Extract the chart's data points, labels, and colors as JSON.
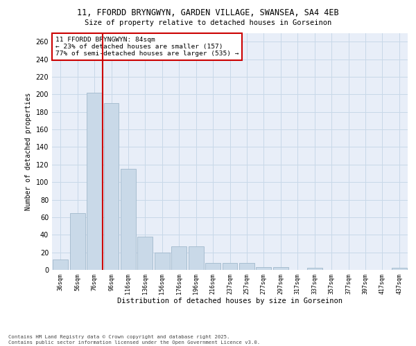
{
  "title_line1": "11, FFORDD BRYNGWYN, GARDEN VILLAGE, SWANSEA, SA4 4EB",
  "title_line2": "Size of property relative to detached houses in Gorseinon",
  "xlabel": "Distribution of detached houses by size in Gorseinon",
  "ylabel": "Number of detached properties",
  "categories": [
    "36sqm",
    "56sqm",
    "76sqm",
    "96sqm",
    "116sqm",
    "136sqm",
    "156sqm",
    "176sqm",
    "196sqm",
    "216sqm",
    "237sqm",
    "257sqm",
    "277sqm",
    "297sqm",
    "317sqm",
    "337sqm",
    "357sqm",
    "377sqm",
    "397sqm",
    "417sqm",
    "437sqm"
  ],
  "values": [
    12,
    65,
    202,
    190,
    115,
    38,
    20,
    27,
    27,
    8,
    8,
    8,
    3,
    3,
    0,
    2,
    0,
    0,
    0,
    0,
    2
  ],
  "bar_color": "#c9d9e8",
  "bar_edge_color": "#a0b8cc",
  "grid_color": "#c8d8e8",
  "background_color": "#e8eef8",
  "vline_x": 2.5,
  "vline_color": "#cc0000",
  "annotation_text": "11 FFORDD BRYNGWYN: 84sqm\n← 23% of detached houses are smaller (157)\n77% of semi-detached houses are larger (535) →",
  "annotation_box_color": "#cc0000",
  "footnote": "Contains HM Land Registry data © Crown copyright and database right 2025.\nContains public sector information licensed under the Open Government Licence v3.0.",
  "ylim": [
    0,
    270
  ],
  "yticks": [
    0,
    20,
    40,
    60,
    80,
    100,
    120,
    140,
    160,
    180,
    200,
    220,
    240,
    260
  ]
}
